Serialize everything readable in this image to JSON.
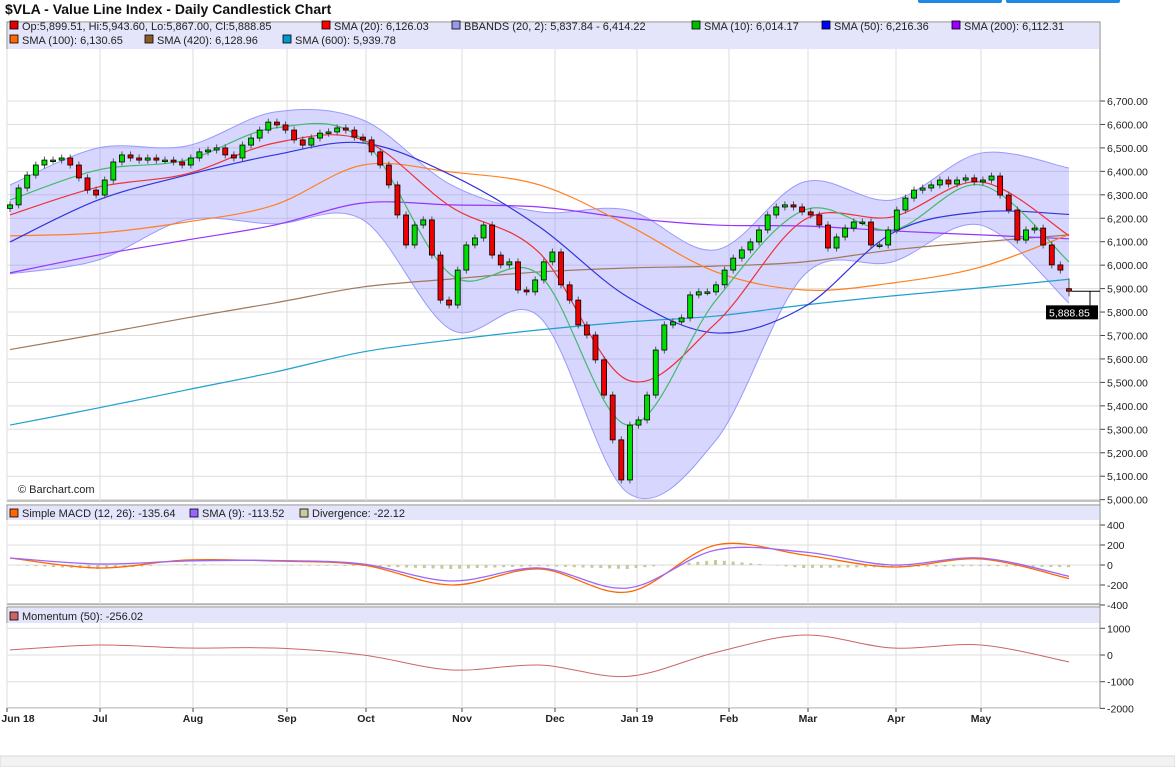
{
  "title": "$VLA - Value Line Index - Daily Candlestick Chart",
  "footer_credit": "© Barchart.com",
  "last_price_label": "5,888.85",
  "colors": {
    "up": "#00dd00",
    "down": "#ee0000",
    "panel_header": "#e4e4fb",
    "band_fill": "#7878ff",
    "last_price_bg": "#000000"
  },
  "legend": {
    "price": [
      {
        "label": "Op:5,899.51, Hi:5,943.60, Lo:5,867.00, Cl:5,888.85",
        "color": "#e00000"
      },
      {
        "label": "SMA (20): 6,126.03",
        "color": "#ff0000"
      },
      {
        "label": "BBANDS (20, 2): 5,837.84 - 6,414.22",
        "color": "#9999ee"
      },
      {
        "label": "SMA (10): 6,014.17",
        "color": "#00bb00"
      },
      {
        "label": "SMA (50): 6,216.36",
        "color": "#0000ff"
      },
      {
        "label": "SMA (200): 6,112.31",
        "color": "#9900ff"
      },
      {
        "label": "SMA (100): 6,130.65",
        "color": "#ff6a00"
      },
      {
        "label": "SMA (420): 6,128.96",
        "color": "#8b5a2b"
      },
      {
        "label": "SMA (600): 5,939.78",
        "color": "#0099cc"
      }
    ],
    "macd": [
      {
        "label": "Simple MACD (12, 26): -135.64",
        "color": "#ff6600"
      },
      {
        "label": "SMA (9): -113.52",
        "color": "#9966ff"
      },
      {
        "label": "Divergence: -22.12",
        "color": "#cccc99"
      }
    ],
    "momentum": [
      {
        "label": "Momentum (50): -256.02",
        "color": "#cc6666"
      }
    ]
  },
  "chart_data": [
    {
      "type": "candlestick",
      "title": "$VLA - Value Line Index - Daily Candlestick Chart",
      "ylim": [
        5000,
        6700
      ],
      "yticks": [
        "6,700.00",
        "6,600.00",
        "6,500.00",
        "6,400.00",
        "6,300.00",
        "6,200.00",
        "6,100.00",
        "6,000.00",
        "5,900.00",
        "5,800.00",
        "5,700.00",
        "5,600.00",
        "5,500.00",
        "5,400.00",
        "5,300.00",
        "5,200.00",
        "5,100.00",
        "5,000.00"
      ],
      "xticks": [
        "Jun 18",
        "Jul",
        "Aug",
        "Sep",
        "Oct",
        "Nov",
        "Dec",
        "Jan 19",
        "Feb",
        "Mar",
        "Apr",
        "May"
      ],
      "grid": true,
      "last": {
        "open": 5899.51,
        "high": 5943.6,
        "low": 5867.0,
        "close": 5888.85
      },
      "closes": [
        6257,
        6329,
        6384,
        6427,
        6448,
        6448,
        6457,
        6427,
        6372,
        6320,
        6299,
        6363,
        6440,
        6470,
        6457,
        6448,
        6457,
        6448,
        6448,
        6440,
        6427,
        6457,
        6483,
        6491,
        6500,
        6470,
        6457,
        6512,
        6542,
        6576,
        6610,
        6598,
        6576,
        6534,
        6512,
        6542,
        6563,
        6568,
        6585,
        6576,
        6546,
        6534,
        6483,
        6427,
        6342,
        6214,
        6086,
        6171,
        6193,
        6043,
        5851,
        5830,
        5979,
        6086,
        6116,
        6171,
        6043,
        6001,
        6014,
        5894,
        5886,
        5937,
        6014,
        6056,
        5916,
        5851,
        5745,
        5702,
        5596,
        5446,
        5255,
        5084,
        5318,
        5340,
        5446,
        5638,
        5745,
        5758,
        5775,
        5873,
        5886,
        5886,
        5916,
        5979,
        6030,
        6065,
        6099,
        6150,
        6214,
        6248,
        6257,
        6248,
        6227,
        6214,
        6171,
        6073,
        6120,
        6158,
        6184,
        6184,
        6086,
        6086,
        6150,
        6235,
        6286,
        6320,
        6329,
        6342,
        6363,
        6346,
        6363,
        6372,
        6355,
        6363,
        6380,
        6299,
        6235,
        6107,
        6150,
        6158,
        6086,
        6001,
        5979,
        5888.85
      ],
      "bbands": {
        "upper": [
          6342,
          6500,
          6508,
          6653,
          6619,
          6342,
          6227,
          6235,
          6065,
          6355,
          6278,
          6478,
          6414.22
        ],
        "lower": [
          5963,
          6022,
          6193,
          6176,
          6193,
          5724,
          5779,
          5029,
          5254,
          5958,
          6014,
          6171,
          5837.84
        ]
      },
      "overlays": [
        {
          "name": "SMA (600)",
          "color": "#1ea0d0",
          "values": [
            5318,
            5391,
            5468,
            5544,
            5630,
            5681,
            5724,
            5758,
            5783,
            5830,
            5869,
            5903,
            5939.78
          ]
        },
        {
          "name": "SMA (420)",
          "color": "#a0785a",
          "values": [
            5640,
            5706,
            5775,
            5839,
            5907,
            5941,
            5971,
            5988,
            5996,
            6014,
            6065,
            6099,
            6128.96
          ]
        },
        {
          "name": "SMA (200)",
          "color": "#9933ff",
          "values": [
            5967,
            6043,
            6107,
            6171,
            6265,
            6257,
            6248,
            6201,
            6171,
            6167,
            6146,
            6129,
            6112.31
          ]
        },
        {
          "name": "SMA (100)",
          "color": "#ff8020",
          "values": [
            6125,
            6137,
            6184,
            6257,
            6427,
            6397,
            6342,
            6171,
            5971,
            5894,
            5924,
            5992,
            6130.65
          ]
        },
        {
          "name": "SMA (50)",
          "color": "#3333dd",
          "values": [
            6099,
            6278,
            6384,
            6470,
            6521,
            6384,
            6163,
            5864,
            5711,
            5822,
            6137,
            6227,
            6216.36
          ]
        },
        {
          "name": "SMA (20)",
          "color": "#ee3333",
          "values": [
            6214,
            6333,
            6389,
            6521,
            6534,
            6248,
            6052,
            5510,
            5753,
            6193,
            6206,
            6355,
            6126.03
          ]
        },
        {
          "name": "SMA (10)",
          "color": "#44bb66",
          "values": [
            6278,
            6406,
            6448,
            6585,
            6534,
            5958,
            5958,
            5318,
            5851,
            6235,
            6150,
            6342,
            6014.17
          ]
        }
      ]
    },
    {
      "type": "line",
      "ylim": [
        -400,
        400
      ],
      "yticks": [
        "400",
        "200",
        "0",
        "-200",
        "-400"
      ],
      "series": [
        {
          "name": "Simple MACD (12, 26)",
          "color": "#ff6600",
          "values": [
            70,
            -30,
            50,
            40,
            0,
            -200,
            -40,
            -270,
            200,
            100,
            -20,
            60,
            -135.64
          ]
        },
        {
          "name": "SMA (9)",
          "color": "#9966ff",
          "values": [
            70,
            10,
            40,
            45,
            10,
            -160,
            -30,
            -230,
            150,
            130,
            0,
            70,
            -113.52
          ]
        }
      ],
      "histogram": {
        "name": "Divergence",
        "color": "#c8c89a"
      }
    },
    {
      "type": "line",
      "ylim": [
        -2000,
        1000
      ],
      "yticks": [
        "1000",
        "0",
        "-1000",
        "-2000"
      ],
      "series": [
        {
          "name": "Momentum (50)",
          "color": "#cc6666",
          "values": [
            190,
            375,
            260,
            260,
            0,
            -560,
            -375,
            -800,
            100,
            750,
            260,
            375,
            -256.02
          ]
        }
      ]
    }
  ]
}
